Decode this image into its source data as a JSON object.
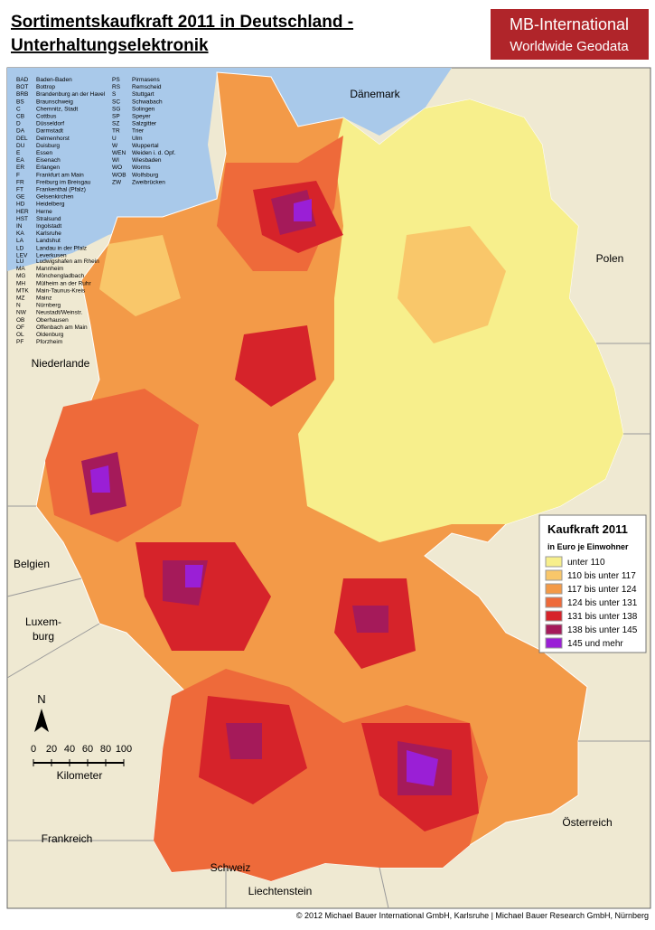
{
  "header": {
    "title_line1": "Sortimentskaufkraft 2011 in Deutschland -",
    "title_line2": "Unterhaltungselektronik"
  },
  "logo": {
    "name": "MB-International",
    "tagline": "Worldwide Geodata"
  },
  "abbreviations": {
    "column1": [
      [
        "BAD",
        "Baden-Baden"
      ],
      [
        "BOT",
        "Bottrop"
      ],
      [
        "BRB",
        "Brandenburg an der Havel"
      ],
      [
        "BS",
        "Braunschweig"
      ],
      [
        "C",
        "Chemnitz, Stadt"
      ],
      [
        "CB",
        "Cottbus"
      ],
      [
        "D",
        "Düsseldorf"
      ],
      [
        "DA",
        "Darmstadt"
      ],
      [
        "DEL",
        "Delmenhorst"
      ],
      [
        "DU",
        "Duisburg"
      ],
      [
        "E",
        "Essen"
      ],
      [
        "EA",
        "Eisenach"
      ],
      [
        "ER",
        "Erlangen"
      ],
      [
        "F",
        "Frankfurt am Main"
      ],
      [
        "FR",
        "Freiburg im Breisgau"
      ],
      [
        "FT",
        "Frankenthal (Pfalz)"
      ],
      [
        "GE",
        "Gelsenkirchen"
      ],
      [
        "HD",
        "Heidelberg"
      ],
      [
        "HER",
        "Herne"
      ],
      [
        "HST",
        "Stralsund"
      ],
      [
        "IN",
        "Ingolstadt"
      ],
      [
        "KA",
        "Karlsruhe"
      ],
      [
        "LA",
        "Landshut"
      ],
      [
        "LD",
        "Landau in der Pfalz"
      ],
      [
        "LEV",
        "Leverkusen"
      ]
    ],
    "column2": [
      [
        "PS",
        "Pirmasens"
      ],
      [
        "RS",
        "Remscheid"
      ],
      [
        "S",
        "Stuttgart"
      ],
      [
        "SC",
        "Schwabach"
      ],
      [
        "SG",
        "Solingen"
      ],
      [
        "SP",
        "Speyer"
      ],
      [
        "SZ",
        "Salzgitter"
      ],
      [
        "TR",
        "Trier"
      ],
      [
        "U",
        "Ulm"
      ],
      [
        "W",
        "Wuppertal"
      ],
      [
        "WEN",
        "Weiden i. d. Opf."
      ],
      [
        "WI",
        "Wiesbaden"
      ],
      [
        "WO",
        "Worms"
      ],
      [
        "WOB",
        "Wolfsburg"
      ],
      [
        "ZW",
        "Zweibrücken"
      ]
    ],
    "column3": [
      [
        "LU",
        "Ludwigshafen am Rhein"
      ],
      [
        "MA",
        "Mannheim"
      ],
      [
        "MG",
        "Mönchengladbach"
      ],
      [
        "MH",
        "Mülheim an der Ruhr"
      ],
      [
        "MTK",
        "Main-Taunus-Kreis"
      ],
      [
        "MZ",
        "Mainz"
      ],
      [
        "N",
        "Nürnberg"
      ],
      [
        "NW",
        "Neustadt/Weinstr."
      ],
      [
        "OB",
        "Oberhausen"
      ],
      [
        "OF",
        "Offenbach am Main"
      ],
      [
        "OL",
        "Oldenburg"
      ],
      [
        "PF",
        "Pforzheim"
      ]
    ]
  },
  "countries": [
    "Dänemark",
    "Polen",
    "Niederlande",
    "Belgien",
    "Luxem-",
    "burg",
    "Frankreich",
    "Schweiz",
    "Liechtenstein",
    "Österreich"
  ],
  "legend": {
    "title": "Kaufkraft 2011",
    "subtitle": "in Euro je Einwohner",
    "items": [
      {
        "label": "unter 110",
        "color": "#f7ef8c"
      },
      {
        "label": "110 bis unter 117",
        "color": "#f9c76a"
      },
      {
        "label": "117 bis unter 124",
        "color": "#f39a48"
      },
      {
        "label": "124 bis unter 131",
        "color": "#ee6a3a"
      },
      {
        "label": "131 bis unter 138",
        "color": "#d6232a"
      },
      {
        "label": "138 bis unter 145",
        "color": "#a51a5a"
      },
      {
        "label": "145 und mehr",
        "color": "#9a1fd6"
      }
    ]
  },
  "scale": {
    "north": "N",
    "labels": [
      "0",
      "20",
      "40",
      "60",
      "80",
      "100"
    ],
    "unit": "Kilometer"
  },
  "footer": {
    "copyright": "© 2012 Michael Bauer International GmbH, Karlsruhe | Michael Bauer Research GmbH, Nürnberg"
  }
}
